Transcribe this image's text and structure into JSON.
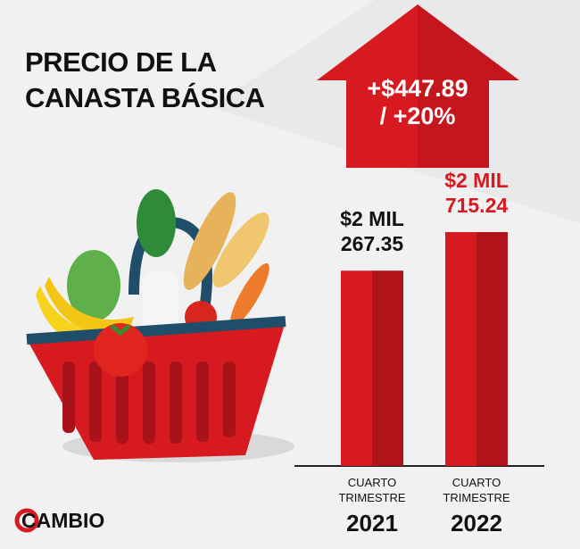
{
  "chart_data": {
    "type": "bar",
    "title": "PRECIO DE LA CANASTA BÁSICA",
    "annotation": "+$447.89 / +20%",
    "categories": [
      "CUARTO TRIMESTRE 2021",
      "CUARTO TRIMESTRE 2022"
    ],
    "values": [
      2267.35,
      2715.24
    ],
    "value_labels": [
      "$2 MIL 267.35",
      "$2 MIL 715.24"
    ],
    "color": "#d71920"
  },
  "logo": "CAMBIO"
}
